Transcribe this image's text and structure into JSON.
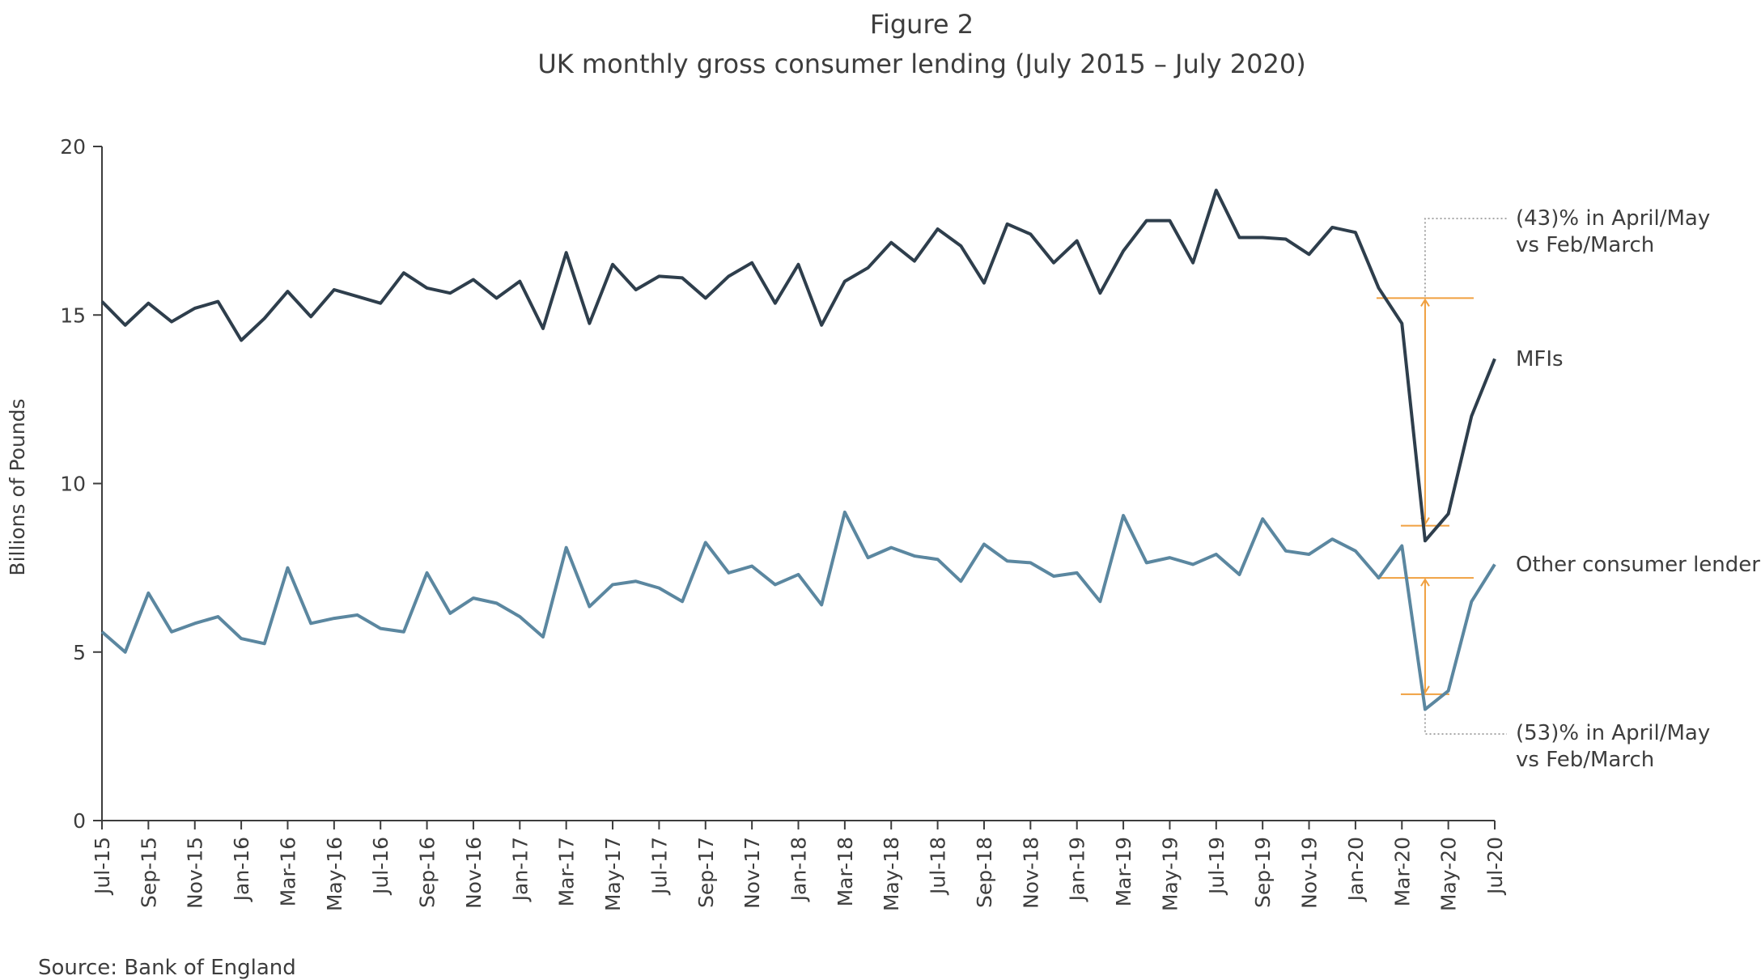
{
  "chart_data": {
    "type": "line",
    "title": "Figure 2",
    "subtitle": "UK monthly gross consumer lending (July 2015 – July 2020)",
    "xlabel": "",
    "ylabel": "Billions of Pounds",
    "ylim": [
      0,
      20
    ],
    "yticks": [
      0,
      5,
      10,
      15,
      20
    ],
    "grid": false,
    "x": [
      "Jul-15",
      "Aug-15",
      "Sep-15",
      "Oct-15",
      "Nov-15",
      "Dec-15",
      "Jan-16",
      "Feb-16",
      "Mar-16",
      "Apr-16",
      "May-16",
      "Jun-16",
      "Jul-16",
      "Aug-16",
      "Sep-16",
      "Oct-16",
      "Nov-16",
      "Dec-16",
      "Jan-17",
      "Feb-17",
      "Mar-17",
      "Apr-17",
      "May-17",
      "Jun-17",
      "Jul-17",
      "Aug-17",
      "Sep-17",
      "Oct-17",
      "Nov-17",
      "Dec-17",
      "Jan-18",
      "Feb-18",
      "Mar-18",
      "Apr-18",
      "May-18",
      "Jun-18",
      "Jul-18",
      "Aug-18",
      "Sep-18",
      "Oct-18",
      "Nov-18",
      "Dec-18",
      "Jan-19",
      "Feb-19",
      "Mar-19",
      "Apr-19",
      "May-19",
      "Jun-19",
      "Jul-19",
      "Aug-19",
      "Sep-19",
      "Oct-19",
      "Nov-19",
      "Dec-19",
      "Jan-20",
      "Feb-20",
      "Mar-20",
      "Apr-20",
      "May-20",
      "Jun-20",
      "Jul-20"
    ],
    "xtick_labels": [
      "Jul-15",
      "Sep-15",
      "Nov-15",
      "Jan-16",
      "Mar-16",
      "May-16",
      "Jul-16",
      "Sep-16",
      "Nov-16",
      "Jan-17",
      "Mar-17",
      "May-17",
      "Jul-17",
      "Sep-17",
      "Nov-17",
      "Jan-18",
      "Mar-18",
      "May-18",
      "Jul-18",
      "Sep-18",
      "Nov-18",
      "Jan-19",
      "Mar-19",
      "May-19",
      "Jul-19",
      "Sep-19",
      "Nov-19",
      "Jan-20",
      "Mar-20",
      "May-20",
      "Jul-20"
    ],
    "series": [
      {
        "name": "MFIs",
        "color": "#2e3e4c",
        "values": [
          15.4,
          14.7,
          15.35,
          14.8,
          15.2,
          15.4,
          14.25,
          14.9,
          15.7,
          14.95,
          15.75,
          15.55,
          15.35,
          16.25,
          15.8,
          15.65,
          16.05,
          15.5,
          16.0,
          14.6,
          16.85,
          14.75,
          16.5,
          15.75,
          16.15,
          16.1,
          15.5,
          16.15,
          16.55,
          15.35,
          16.5,
          14.7,
          16.0,
          16.4,
          17.15,
          16.6,
          17.55,
          17.05,
          15.95,
          17.7,
          17.4,
          16.55,
          17.2,
          15.65,
          16.9,
          17.8,
          17.8,
          16.55,
          18.7,
          17.3,
          17.3,
          17.25,
          16.8,
          17.6,
          17.45,
          15.8,
          14.75,
          8.3,
          9.1,
          12.0,
          13.7
        ]
      },
      {
        "name": "Other consumer lenders",
        "color": "#5b87a0",
        "values": [
          5.6,
          5.0,
          6.75,
          5.6,
          5.85,
          6.05,
          5.4,
          5.25,
          7.5,
          5.85,
          6.0,
          6.1,
          5.7,
          5.6,
          7.35,
          6.15,
          6.6,
          6.45,
          6.05,
          5.45,
          8.1,
          6.35,
          7.0,
          7.1,
          6.9,
          6.5,
          8.25,
          7.35,
          7.55,
          7.0,
          7.3,
          6.4,
          9.15,
          7.8,
          8.1,
          7.85,
          7.75,
          7.1,
          8.2,
          7.7,
          7.65,
          7.25,
          7.35,
          6.5,
          9.05,
          7.65,
          7.8,
          7.6,
          7.9,
          7.3,
          8.95,
          8.0,
          7.9,
          8.35,
          8.0,
          7.2,
          8.15,
          3.3,
          3.85,
          6.5,
          7.6
        ]
      }
    ],
    "annotations": {
      "mfi_change_line1": "(43)% in April/May",
      "mfi_change_line2": "vs Feb/March",
      "other_change_line1": "(53)% in April/May",
      "other_change_line2": "vs Feb/March",
      "bracket_color": "#f0a040",
      "mfi_bracket": {
        "x_month": "Apr-20",
        "from": 15.5,
        "to": 8.75
      },
      "other_bracket": {
        "x_month": "Apr-20",
        "from": 7.2,
        "to": 3.75
      }
    },
    "source": "Source: Bank of England"
  }
}
